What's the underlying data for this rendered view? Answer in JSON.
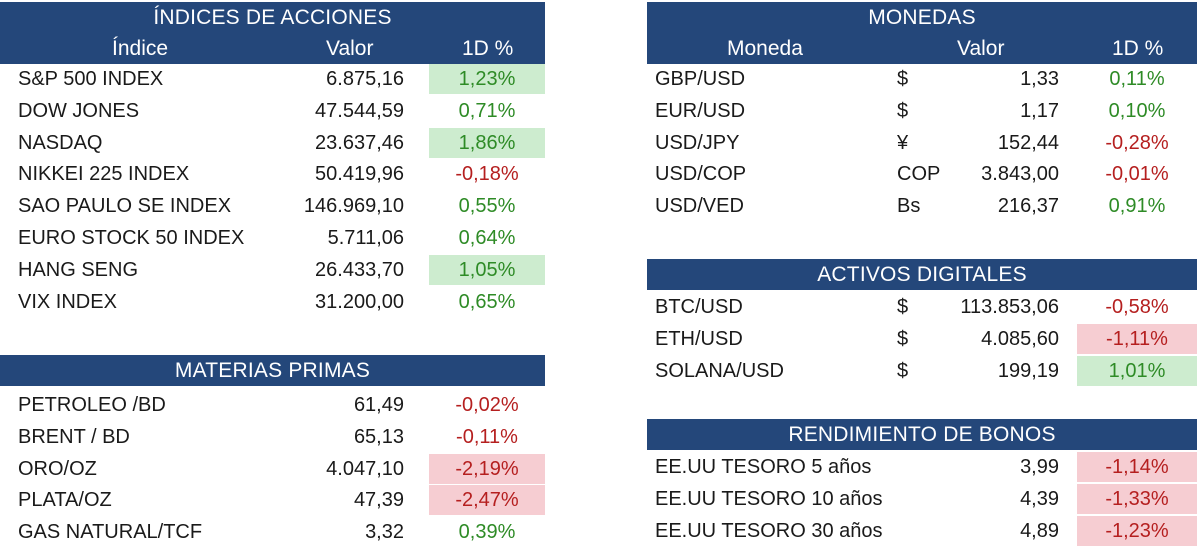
{
  "indices": {
    "title": "ÍNDICES DE ACCIONES",
    "headers": {
      "name": "Índice",
      "value": "Valor",
      "change": "1D %"
    },
    "rows": [
      {
        "name": "S&P 500 INDEX",
        "value": "6.875,16",
        "change": "1,23%",
        "trend": "pos",
        "highlight": true
      },
      {
        "name": "DOW JONES",
        "value": "47.544,59",
        "change": "0,71%",
        "trend": "pos",
        "highlight": false
      },
      {
        "name": "NASDAQ",
        "value": "23.637,46",
        "change": "1,86%",
        "trend": "pos",
        "highlight": true
      },
      {
        "name": "NIKKEI 225 INDEX",
        "value": "50.419,96",
        "change": "-0,18%",
        "trend": "neg",
        "highlight": false
      },
      {
        "name": "SAO PAULO SE INDEX",
        "value": "146.969,10",
        "change": "0,55%",
        "trend": "pos",
        "highlight": false
      },
      {
        "name": "EURO STOCK 50 INDEX",
        "value": "5.711,06",
        "change": "0,64%",
        "trend": "pos",
        "highlight": false
      },
      {
        "name": "HANG SENG",
        "value": "26.433,70",
        "change": "1,05%",
        "trend": "pos",
        "highlight": true
      },
      {
        "name": "VIX INDEX",
        "value": "31.200,00",
        "change": "0,65%",
        "trend": "pos",
        "highlight": false
      }
    ]
  },
  "commodities": {
    "title": "MATERIAS PRIMAS",
    "rows": [
      {
        "name": "PETROLEO /BD",
        "value": "61,49",
        "change": "-0,02%",
        "trend": "neg",
        "highlight": false
      },
      {
        "name": "BRENT / BD",
        "value": "65,13",
        "change": "-0,11%",
        "trend": "neg",
        "highlight": false
      },
      {
        "name": "ORO/OZ",
        "value": "4.047,10",
        "change": "-2,19%",
        "trend": "neg",
        "highlight": true
      },
      {
        "name": "PLATA/OZ",
        "value": "47,39",
        "change": "-2,47%",
        "trend": "neg",
        "highlight": true
      },
      {
        "name": "GAS NATURAL/TCF",
        "value": "3,32",
        "change": "0,39%",
        "trend": "pos",
        "highlight": false
      }
    ]
  },
  "currencies": {
    "title": "MONEDAS",
    "headers": {
      "name": "Moneda",
      "value": "Valor",
      "change": "1D %"
    },
    "rows": [
      {
        "name": "GBP/USD",
        "symbol": "$",
        "value": "1,33",
        "change": "0,11%",
        "trend": "pos",
        "highlight": false
      },
      {
        "name": "EUR/USD",
        "symbol": "$",
        "value": "1,17",
        "change": "0,10%",
        "trend": "pos",
        "highlight": false
      },
      {
        "name": "USD/JPY",
        "symbol": "¥",
        "value": "152,44",
        "change": "-0,28%",
        "trend": "neg",
        "highlight": false
      },
      {
        "name": "USD/COP",
        "symbol": "COP",
        "value": "3.843,00",
        "change": "-0,01%",
        "trend": "neg",
        "highlight": false
      },
      {
        "name": "USD/VED",
        "symbol": "Bs",
        "value": "216,37",
        "change": "0,91%",
        "trend": "pos",
        "highlight": false
      }
    ]
  },
  "digital": {
    "title": "ACTIVOS DIGITALES",
    "rows": [
      {
        "name": "BTC/USD",
        "symbol": "$",
        "value": "113.853,06",
        "change": "-0,58%",
        "trend": "neg",
        "highlight": false
      },
      {
        "name": "ETH/USD",
        "symbol": "$",
        "value": "4.085,60",
        "change": "-1,11%",
        "trend": "neg",
        "highlight": true
      },
      {
        "name": "SOLANA/USD",
        "symbol": "$",
        "value": "199,19",
        "change": "1,01%",
        "trend": "pos",
        "highlight": true
      }
    ]
  },
  "bonds": {
    "title": "RENDIMIENTO DE BONOS",
    "rows": [
      {
        "name": "EE.UU TESORO 5 años",
        "value": "3,99",
        "change": "-1,14%",
        "trend": "neg",
        "highlight": true
      },
      {
        "name": "EE.UU TESORO 10 años",
        "value": "4,39",
        "change": "-1,33%",
        "trend": "neg",
        "highlight": true
      },
      {
        "name": "EE.UU TESORO 30 años",
        "value": "4,89",
        "change": "-1,23%",
        "trend": "neg",
        "highlight": true
      }
    ]
  }
}
